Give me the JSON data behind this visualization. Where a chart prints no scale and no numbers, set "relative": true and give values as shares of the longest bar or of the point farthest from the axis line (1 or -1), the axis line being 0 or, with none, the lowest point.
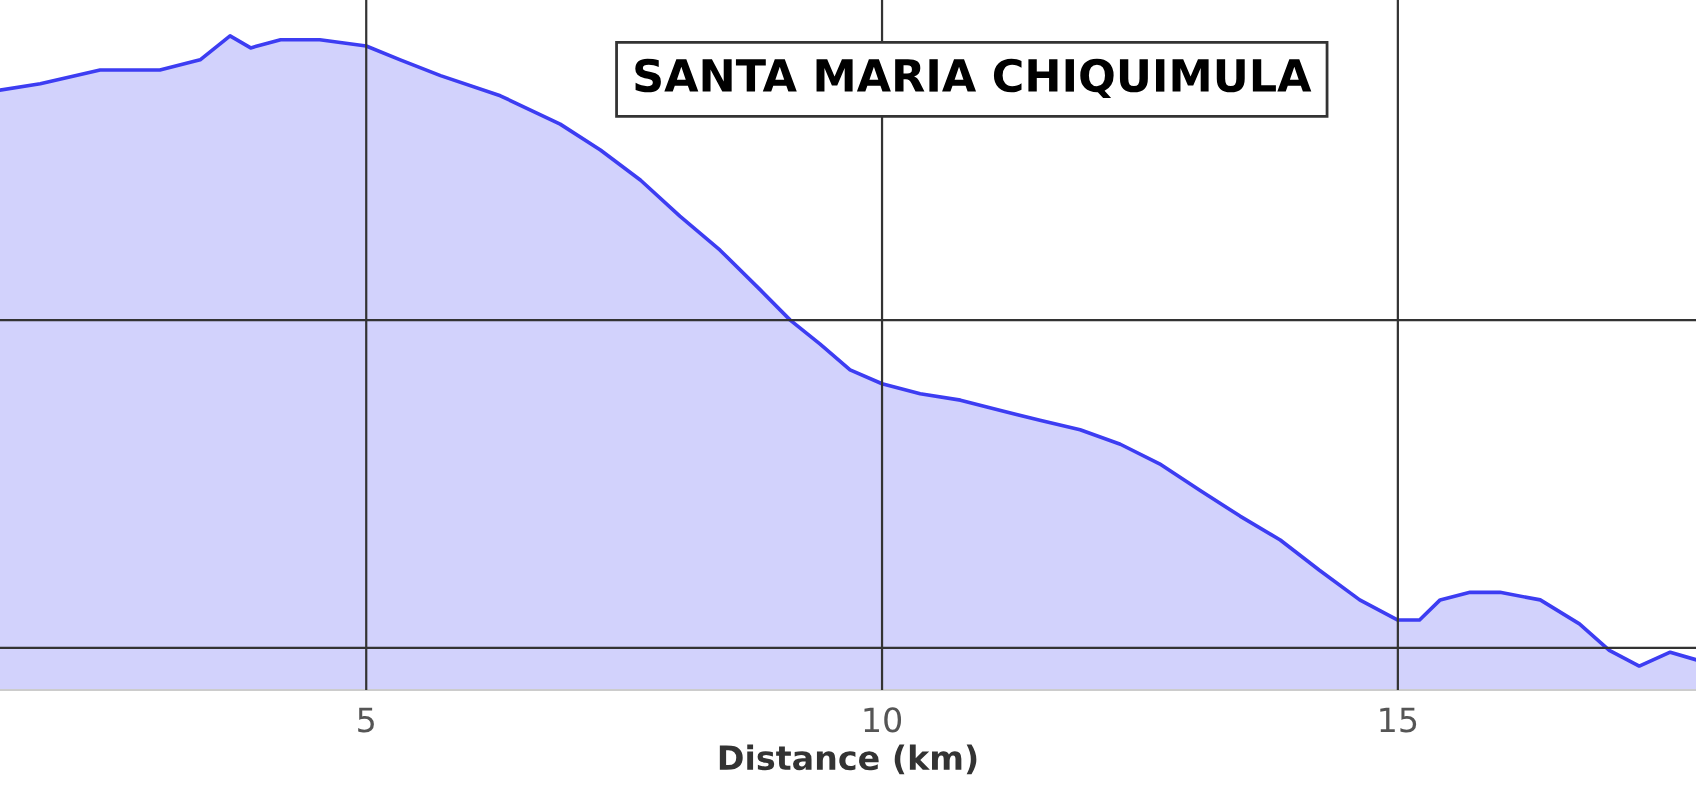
{
  "chart_data": {
    "type": "area",
    "title": "SANTA MARIA CHIQUIMULA",
    "xlabel": "Distance (km)",
    "relative": true,
    "x": [
      1.45,
      1.84,
      2.42,
      3.0,
      3.39,
      3.68,
      3.88,
      4.17,
      4.55,
      5.0,
      5.33,
      5.72,
      6.3,
      6.88,
      7.27,
      7.66,
      8.04,
      8.43,
      8.82,
      9.11,
      9.4,
      9.69,
      10.0,
      10.37,
      10.76,
      11.14,
      11.53,
      11.92,
      12.31,
      12.69,
      13.08,
      13.47,
      13.86,
      14.24,
      14.63,
      15.0,
      15.21,
      15.41,
      15.7,
      15.99,
      16.38,
      16.76,
      17.05,
      17.34,
      17.64,
      17.89
    ],
    "series": [
      {
        "color": "#3d3df2",
        "values": [
          0.914,
          0.924,
          0.946,
          0.946,
          0.962,
          1.0,
          0.981,
          0.994,
          0.994,
          0.984,
          0.962,
          0.937,
          0.905,
          0.86,
          0.819,
          0.771,
          0.714,
          0.66,
          0.597,
          0.549,
          0.511,
          0.47,
          0.448,
          0.432,
          0.422,
          0.406,
          0.39,
          0.375,
          0.352,
          0.321,
          0.279,
          0.238,
          0.2,
          0.152,
          0.105,
          0.073,
          0.073,
          0.105,
          0.117,
          0.117,
          0.105,
          0.067,
          0.025,
          0.0,
          0.022,
          0.01
        ]
      }
    ],
    "xlim": [
      1.45,
      17.89
    ],
    "xticks": [
      5,
      10,
      15
    ],
    "grid": "x",
    "ref_lines": [
      {
        "axis": "y",
        "value": 0.549,
        "color": "#333333"
      },
      {
        "axis": "y",
        "value": 0.029,
        "color": "#333333"
      }
    ]
  }
}
